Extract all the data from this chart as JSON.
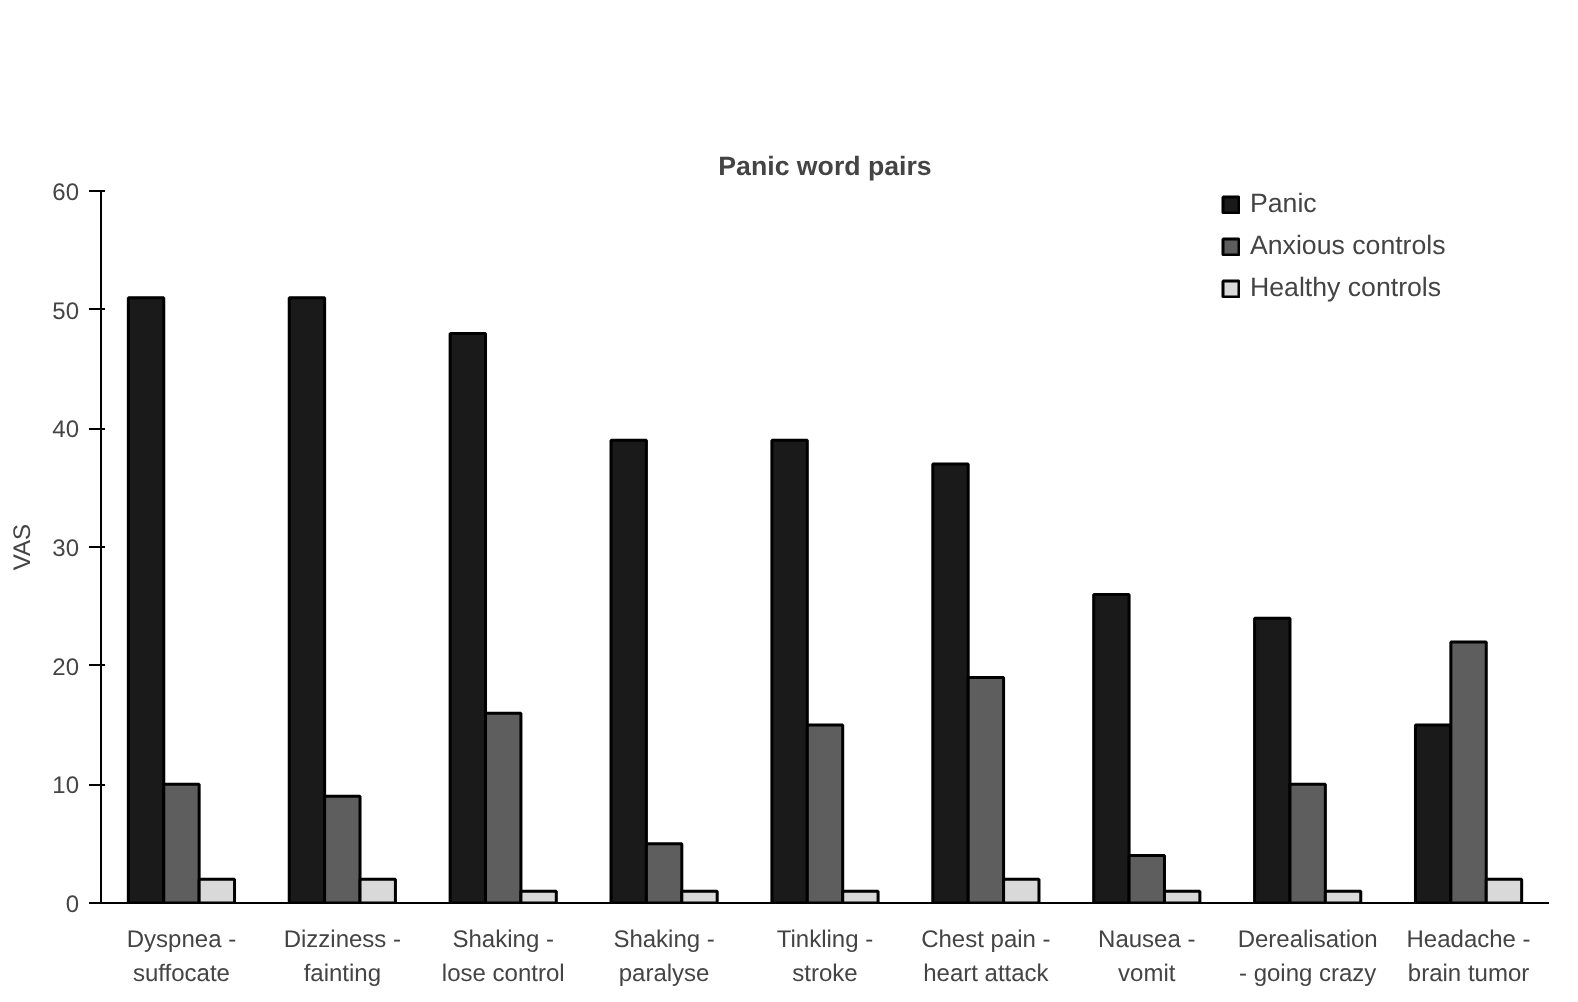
{
  "chart_data": {
    "type": "bar",
    "title": "Panic word pairs",
    "ylabel": "VAS",
    "categories": [
      "Dyspnea -\nsuffocate",
      "Dizziness -\nfainting",
      "Shaking -\nlose control",
      "Shaking -\nparalyse",
      "Tinkling -\nstroke",
      "Chest pain -\nheart attack",
      "Nausea -\nvomit",
      "Derealisation\n- going crazy",
      "Headache -\nbrain tumor"
    ],
    "series": [
      {
        "name": "Panic",
        "color": "#1a1a1a",
        "values": [
          51,
          51,
          48,
          39,
          39,
          37,
          26,
          24,
          15
        ]
      },
      {
        "name": "Anxious controls",
        "color": "#5e5e5e",
        "values": [
          10,
          9,
          16,
          5,
          15,
          19,
          4,
          10,
          22
        ]
      },
      {
        "name": "Healthy controls",
        "color": "#d9d9d9",
        "values": [
          2,
          2,
          1,
          1,
          1,
          2,
          1,
          1,
          2
        ]
      }
    ],
    "ylim": [
      0,
      60
    ],
    "yticks": [
      0,
      10,
      20,
      30,
      40,
      50,
      60
    ],
    "grid": false,
    "legend": "top right"
  }
}
